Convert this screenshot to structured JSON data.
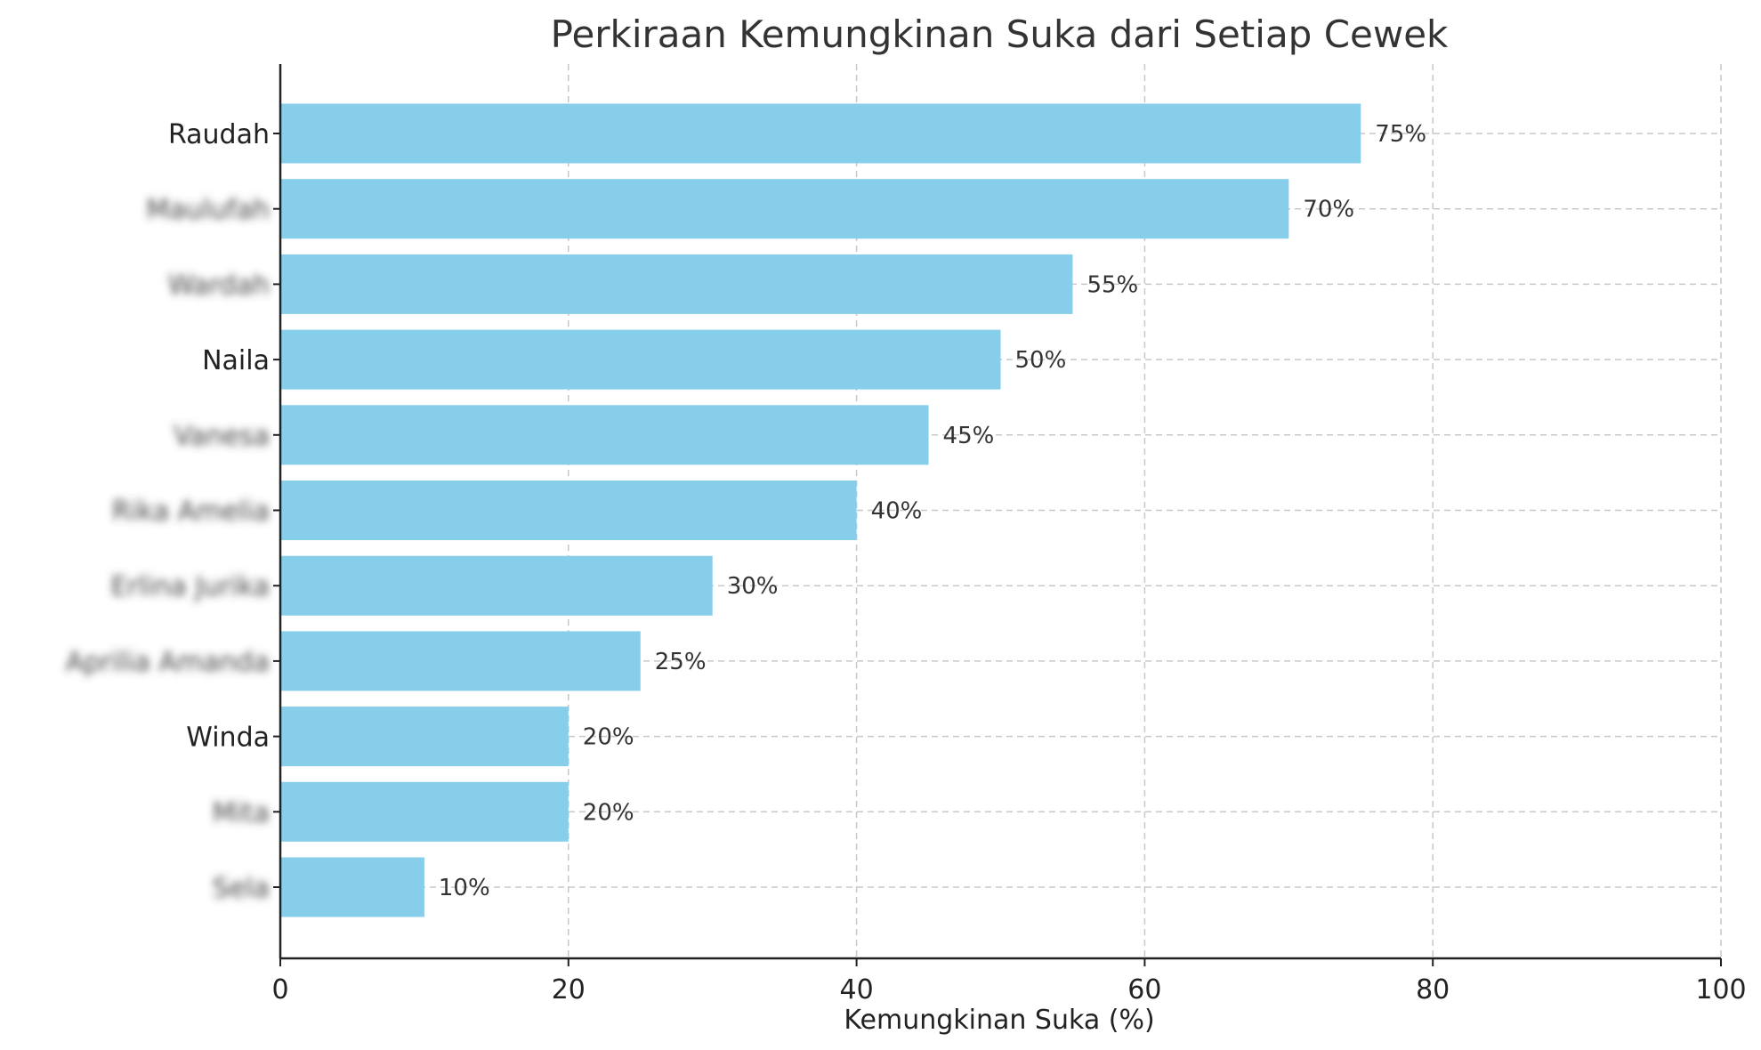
{
  "chart_data": {
    "type": "bar",
    "orientation": "horizontal",
    "title": "Perkiraan Kemungkinan Suka dari Setiap Cewek",
    "xlabel": "Kemungkinan Suka (%)",
    "ylabel": "",
    "xlim": [
      0,
      100
    ],
    "xticks": [
      "0",
      "20",
      "40",
      "60",
      "80",
      "100"
    ],
    "grid": true,
    "bar_color": "#87CEEB",
    "categories": [
      "Raudah",
      "Maulufah",
      "Wardah",
      "Naila",
      "Vanesa",
      "Rika Amelia",
      "Erlina Jurika",
      "Aprilia Amanda",
      "Winda",
      "Mita",
      "Sela"
    ],
    "category_blurred": [
      false,
      true,
      true,
      false,
      true,
      true,
      true,
      true,
      false,
      true,
      true
    ],
    "values": [
      75,
      70,
      55,
      50,
      45,
      40,
      30,
      25,
      20,
      20,
      10
    ],
    "data_labels": [
      "75%",
      "70%",
      "55%",
      "50%",
      "45%",
      "40%",
      "30%",
      "25%",
      "20%",
      "20%",
      "10%"
    ]
  }
}
